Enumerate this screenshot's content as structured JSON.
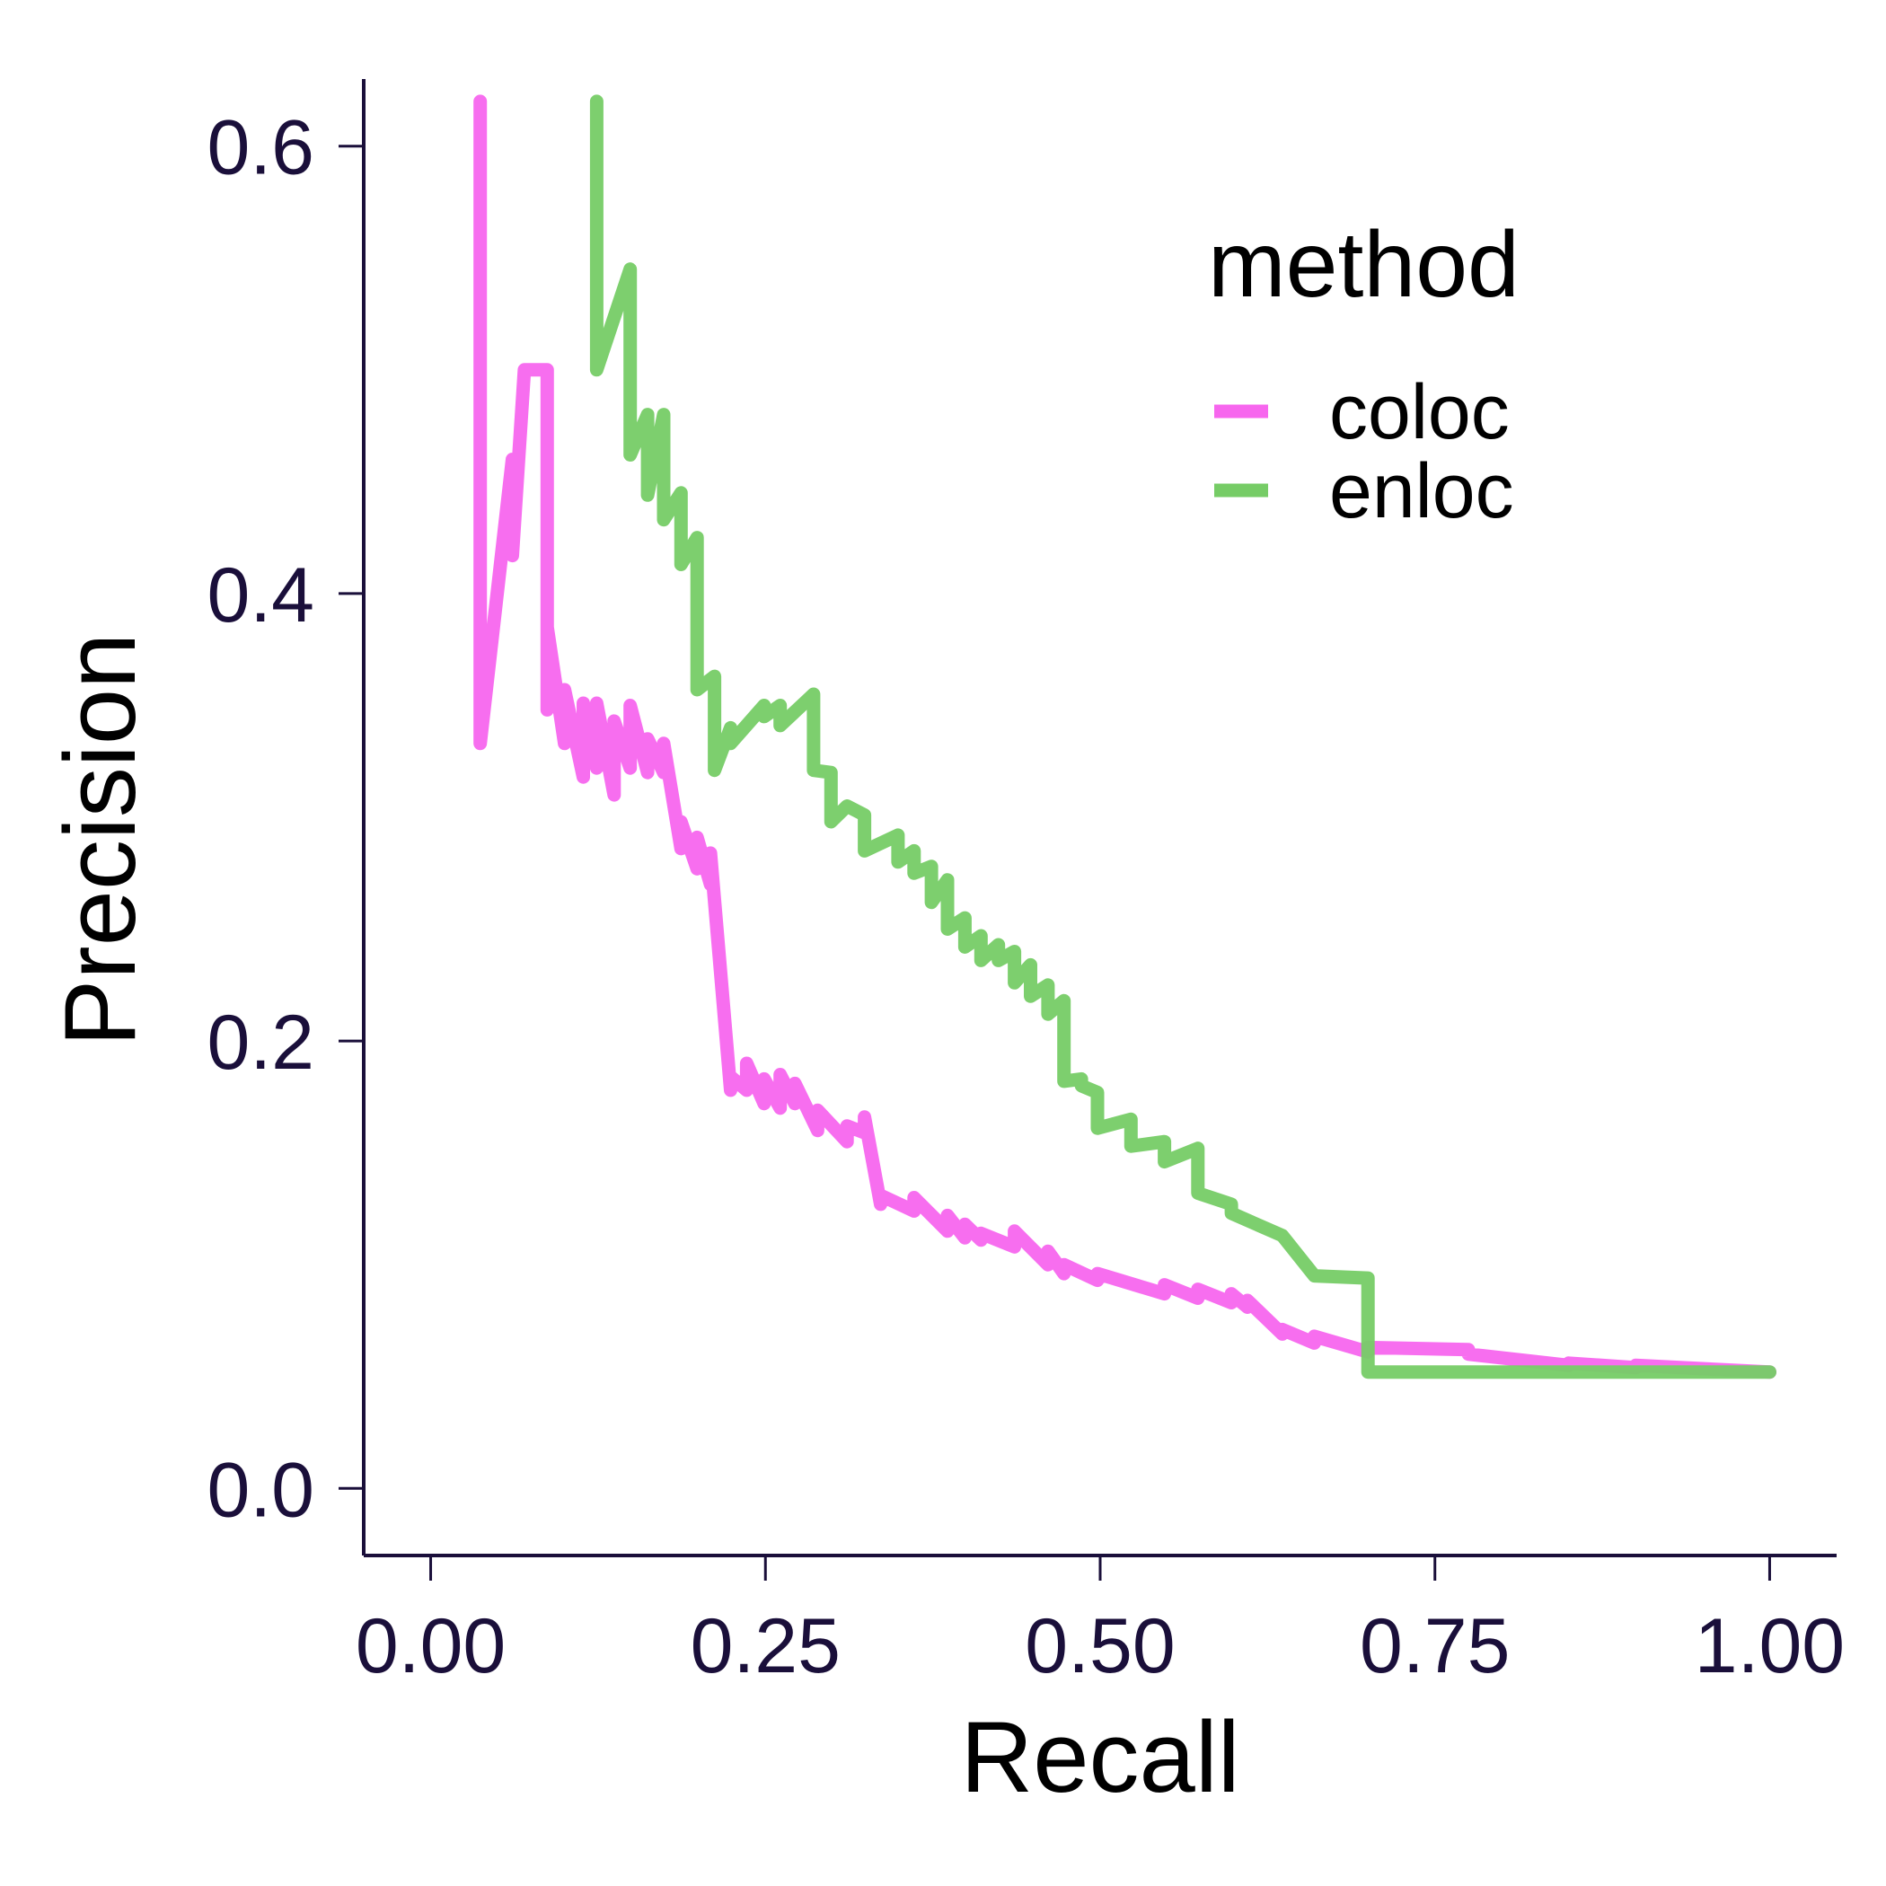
{
  "chart_data": {
    "type": "line",
    "xlabel": "Recall",
    "ylabel": "Precision",
    "xlim": [
      -0.05,
      1.05
    ],
    "ylim": [
      -0.03,
      0.63
    ],
    "x_ticks": [
      {
        "value": 0.0,
        "label": "0.00"
      },
      {
        "value": 0.25,
        "label": "0.25"
      },
      {
        "value": 0.5,
        "label": "0.50"
      },
      {
        "value": 0.75,
        "label": "0.75"
      },
      {
        "value": 1.0,
        "label": "1.00"
      }
    ],
    "y_ticks": [
      {
        "value": 0.0,
        "label": "0.0"
      },
      {
        "value": 0.2,
        "label": "0.2"
      },
      {
        "value": 0.4,
        "label": "0.4"
      },
      {
        "value": 0.6,
        "label": "0.6"
      }
    ],
    "grid": false,
    "legend": {
      "title": "method",
      "position": "top-right"
    },
    "series": [
      {
        "name": "coloc",
        "color": "#f766ee",
        "x": [
          0.037,
          0.037,
          0.037,
          0.061,
          0.061,
          0.07,
          0.07,
          0.087,
          0.087,
          0.087,
          0.1,
          0.1,
          0.114,
          0.114,
          0.124,
          0.124,
          0.137,
          0.137,
          0.149,
          0.149,
          0.162,
          0.162,
          0.174,
          0.174,
          0.187,
          0.187,
          0.199,
          0.199,
          0.209,
          0.209,
          0.224,
          0.224,
          0.236,
          0.236,
          0.249,
          0.249,
          0.261,
          0.261,
          0.272,
          0.272,
          0.289,
          0.289,
          0.311,
          0.311,
          0.324,
          0.324,
          0.336,
          0.336,
          0.361,
          0.361,
          0.386,
          0.386,
          0.399,
          0.399,
          0.411,
          0.411,
          0.436,
          0.436,
          0.461,
          0.461,
          0.473,
          0.473,
          0.498,
          0.498,
          0.548,
          0.548,
          0.573,
          0.573,
          0.598,
          0.598,
          0.61,
          0.61,
          0.636,
          0.636,
          0.66,
          0.66,
          0.7,
          0.7,
          0.775,
          0.775,
          0.85,
          0.85,
          0.9,
          0.9,
          1.0
        ],
        "y": [
          0.62,
          0.333,
          0.333,
          0.46,
          0.417,
          0.5,
          0.5,
          0.5,
          0.348,
          0.385,
          0.333,
          0.357,
          0.318,
          0.351,
          0.322,
          0.351,
          0.31,
          0.343,
          0.322,
          0.35,
          0.32,
          0.335,
          0.32,
          0.333,
          0.286,
          0.298,
          0.277,
          0.291,
          0.27,
          0.284,
          0.178,
          0.184,
          0.178,
          0.19,
          0.172,
          0.183,
          0.17,
          0.185,
          0.172,
          0.181,
          0.16,
          0.169,
          0.155,
          0.162,
          0.159,
          0.166,
          0.127,
          0.131,
          0.124,
          0.13,
          0.115,
          0.122,
          0.112,
          0.118,
          0.111,
          0.114,
          0.108,
          0.115,
          0.1,
          0.106,
          0.096,
          0.1,
          0.093,
          0.096,
          0.087,
          0.091,
          0.085,
          0.089,
          0.083,
          0.087,
          0.081,
          0.084,
          0.069,
          0.071,
          0.065,
          0.068,
          0.061,
          0.063,
          0.062,
          0.06,
          0.055,
          0.056,
          0.054,
          0.055,
          0.052
        ]
      },
      {
        "name": "enloc",
        "color": "#76cc66",
        "x": [
          0.124,
          0.124,
          0.149,
          0.149,
          0.162,
          0.162,
          0.174,
          0.174,
          0.187,
          0.187,
          0.199,
          0.199,
          0.212,
          0.212,
          0.224,
          0.224,
          0.249,
          0.249,
          0.261,
          0.261,
          0.286,
          0.286,
          0.299,
          0.299,
          0.311,
          0.311,
          0.324,
          0.324,
          0.349,
          0.349,
          0.361,
          0.361,
          0.374,
          0.374,
          0.386,
          0.386,
          0.399,
          0.399,
          0.411,
          0.411,
          0.424,
          0.424,
          0.436,
          0.436,
          0.448,
          0.448,
          0.461,
          0.461,
          0.473,
          0.473,
          0.486,
          0.486,
          0.498,
          0.498,
          0.523,
          0.523,
          0.548,
          0.548,
          0.573,
          0.573,
          0.598,
          0.598,
          0.636,
          0.636,
          0.66,
          0.66,
          0.7,
          0.7,
          0.75,
          0.75,
          1.0
        ],
        "y": [
          0.62,
          0.5,
          0.545,
          0.462,
          0.48,
          0.444,
          0.48,
          0.433,
          0.445,
          0.413,
          0.425,
          0.357,
          0.363,
          0.321,
          0.34,
          0.333,
          0.35,
          0.345,
          0.35,
          0.341,
          0.355,
          0.321,
          0.32,
          0.298,
          0.305,
          0.305,
          0.301,
          0.285,
          0.292,
          0.28,
          0.285,
          0.275,
          0.278,
          0.262,
          0.272,
          0.25,
          0.255,
          0.242,
          0.247,
          0.236,
          0.243,
          0.236,
          0.24,
          0.226,
          0.234,
          0.22,
          0.225,
          0.212,
          0.218,
          0.182,
          0.183,
          0.18,
          0.177,
          0.161,
          0.165,
          0.153,
          0.155,
          0.146,
          0.152,
          0.132,
          0.127,
          0.123,
          0.113,
          0.113,
          0.095,
          0.095,
          0.094,
          0.052,
          0.052,
          0.052,
          0.052
        ]
      }
    ]
  }
}
